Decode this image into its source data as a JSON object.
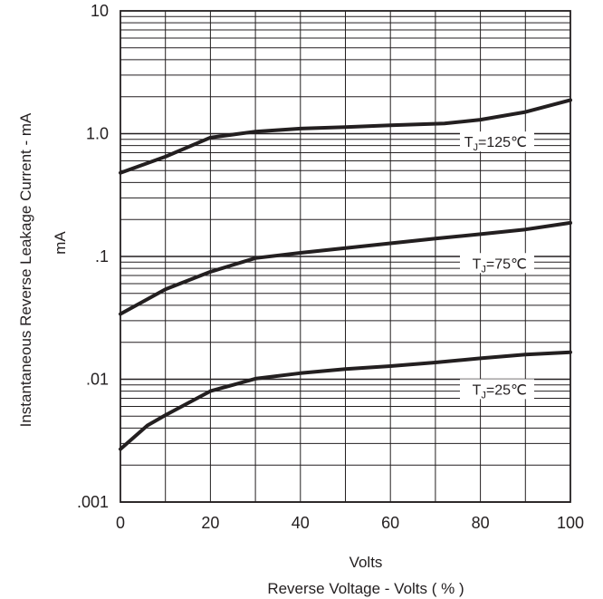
{
  "chart_data": {
    "type": "line",
    "title": "",
    "xlabel_line1": "Volts",
    "xlabel_line2": "Reverse Voltage - Volts ( % )",
    "ylabel_line1": "Instantaneous  Reverse  Leakage  Current - mA",
    "ylabel_line2": "mA",
    "x_scale": "linear",
    "y_scale": "log",
    "xlim": [
      0,
      100
    ],
    "ylim": [
      0.001,
      10
    ],
    "grid": true,
    "x_ticks": [
      {
        "value": 0,
        "label": "0"
      },
      {
        "value": 20,
        "label": "20"
      },
      {
        "value": 40,
        "label": "40"
      },
      {
        "value": 60,
        "label": "60"
      },
      {
        "value": 80,
        "label": "80"
      },
      {
        "value": 100,
        "label": "100"
      }
    ],
    "y_ticks": [
      {
        "value": 10,
        "label": "10"
      },
      {
        "value": 1,
        "label": "1.0"
      },
      {
        "value": 0.1,
        "label": ".1"
      },
      {
        "value": 0.01,
        "label": ".01"
      },
      {
        "value": 0.001,
        "label": ".001"
      }
    ],
    "series": [
      {
        "name": "TJ=125℃",
        "label_main": "T",
        "label_sub": "J",
        "label_rest": "=125℃",
        "x": [
          0,
          10,
          20,
          30,
          40,
          50,
          60,
          72,
          80,
          90,
          100
        ],
        "y": [
          0.48,
          0.65,
          0.93,
          1.04,
          1.1,
          1.13,
          1.17,
          1.21,
          1.3,
          1.5,
          1.88
        ]
      },
      {
        "name": "TJ=75℃",
        "label_main": "T",
        "label_sub": "J",
        "label_rest": "=75℃",
        "x": [
          0,
          10,
          20,
          30,
          40,
          50,
          60,
          70,
          80,
          90,
          100
        ],
        "y": [
          0.034,
          0.054,
          0.075,
          0.097,
          0.107,
          0.117,
          0.128,
          0.14,
          0.152,
          0.166,
          0.188
        ]
      },
      {
        "name": "TJ=25℃",
        "label_main": "T",
        "label_sub": "J",
        "label_rest": "=25℃",
        "x": [
          0,
          6,
          10,
          20,
          30,
          40,
          50,
          60,
          70,
          80,
          90,
          100
        ],
        "y": [
          0.0027,
          0.0042,
          0.0051,
          0.008,
          0.0101,
          0.0112,
          0.0121,
          0.0128,
          0.0137,
          0.0148,
          0.0159,
          0.0166
        ]
      }
    ]
  }
}
